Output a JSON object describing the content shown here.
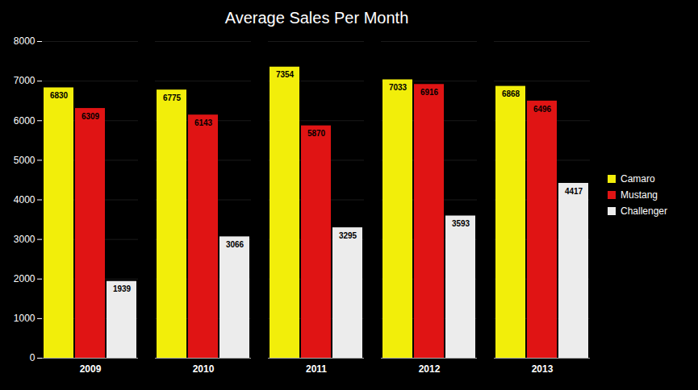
{
  "chart_data": {
    "type": "bar",
    "title": "Average Sales Per Month",
    "categories": [
      "2009",
      "2010",
      "2011",
      "2012",
      "2013"
    ],
    "series": [
      {
        "name": "Camaro",
        "color": "#f2ee0a",
        "values": [
          6830,
          6775,
          7354,
          7033,
          6868
        ]
      },
      {
        "name": "Mustang",
        "color": "#e01414",
        "values": [
          6309,
          6143,
          5870,
          6916,
          6496
        ]
      },
      {
        "name": "Challenger",
        "color": "#ececec",
        "values": [
          1939,
          3066,
          3295,
          3593,
          4417
        ]
      }
    ],
    "ylim": [
      0,
      8000
    ],
    "yticks": [
      0,
      1000,
      2000,
      3000,
      4000,
      5000,
      6000,
      7000,
      8000
    ],
    "grid": true,
    "legend": "right",
    "data_labels": true
  }
}
